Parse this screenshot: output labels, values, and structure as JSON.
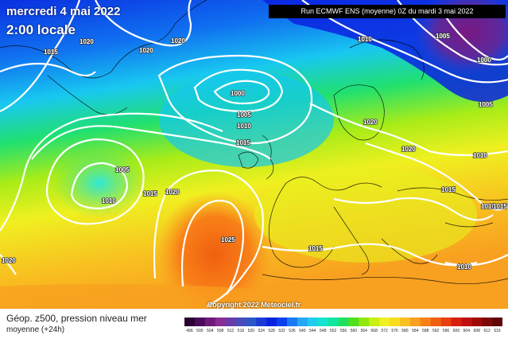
{
  "header": {
    "date": "mercredi 4 mai 2022",
    "time": "2:00 locale",
    "run": "Run ECMWF ENS (moyenne) 0Z du mardi 3 mai 2022"
  },
  "copyright": "Copyright 2022 Meteociel.fr",
  "legend": {
    "title": "Géop. z500, pression niveau mer",
    "subtitle": "moyenne  (+24h)",
    "ticks": [
      "496",
      "500",
      "504",
      "508",
      "512",
      "516",
      "520",
      "524",
      "528",
      "532",
      "536",
      "540",
      "544",
      "548",
      "552",
      "556",
      "560",
      "564",
      "568",
      "572",
      "576",
      "580",
      "584",
      "588",
      "592",
      "596",
      "600",
      "604",
      "608",
      "612",
      "616"
    ],
    "colors": [
      "#2a0030",
      "#4b0a5a",
      "#6d1a78",
      "#8a2b96",
      "#6a3aa8",
      "#4a4abc",
      "#2a56c8",
      "#1a3ad6",
      "#0a22e0",
      "#0a40ee",
      "#1878f6",
      "#24a8f8",
      "#20ccf0",
      "#14e4d0",
      "#10e6a0",
      "#20e060",
      "#50e020",
      "#90e810",
      "#c8f010",
      "#f0f020",
      "#f8dc20",
      "#f8c020",
      "#f8a020",
      "#f88018",
      "#f06010",
      "#e84010",
      "#d82010",
      "#c01010",
      "#a00808",
      "#800808",
      "#600808"
    ]
  },
  "pressure_labels": [
    "1020",
    "1015",
    "1020",
    "1020",
    "1010",
    "1005",
    "1000",
    "1000",
    "1005",
    "1010",
    "1005",
    "1015",
    "1020",
    "1020",
    "1005",
    "1010",
    "1015",
    "1020",
    "1015",
    "1010",
    "1010",
    "1015",
    "1025",
    "1015",
    "1010",
    "1020"
  ]
}
